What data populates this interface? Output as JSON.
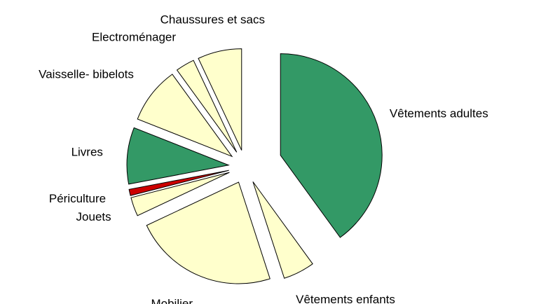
{
  "chart_data": {
    "type": "pie",
    "categories": [
      "Vêtements adultes",
      "Vêtements enfants",
      "Mobilier",
      "Jouets",
      "Périculture",
      "Livres",
      "Vaisselle- bibelots",
      "Electroménager",
      "Chaussures et sacs"
    ],
    "values": [
      40,
      5,
      23,
      3,
      1,
      9,
      9,
      3,
      7
    ],
    "colors": [
      "#339966",
      "#ffffcc",
      "#ffffcc",
      "#ffffcc",
      "#cc0000",
      "#339966",
      "#ffffcc",
      "#ffffcc",
      "#ffffcc"
    ]
  }
}
